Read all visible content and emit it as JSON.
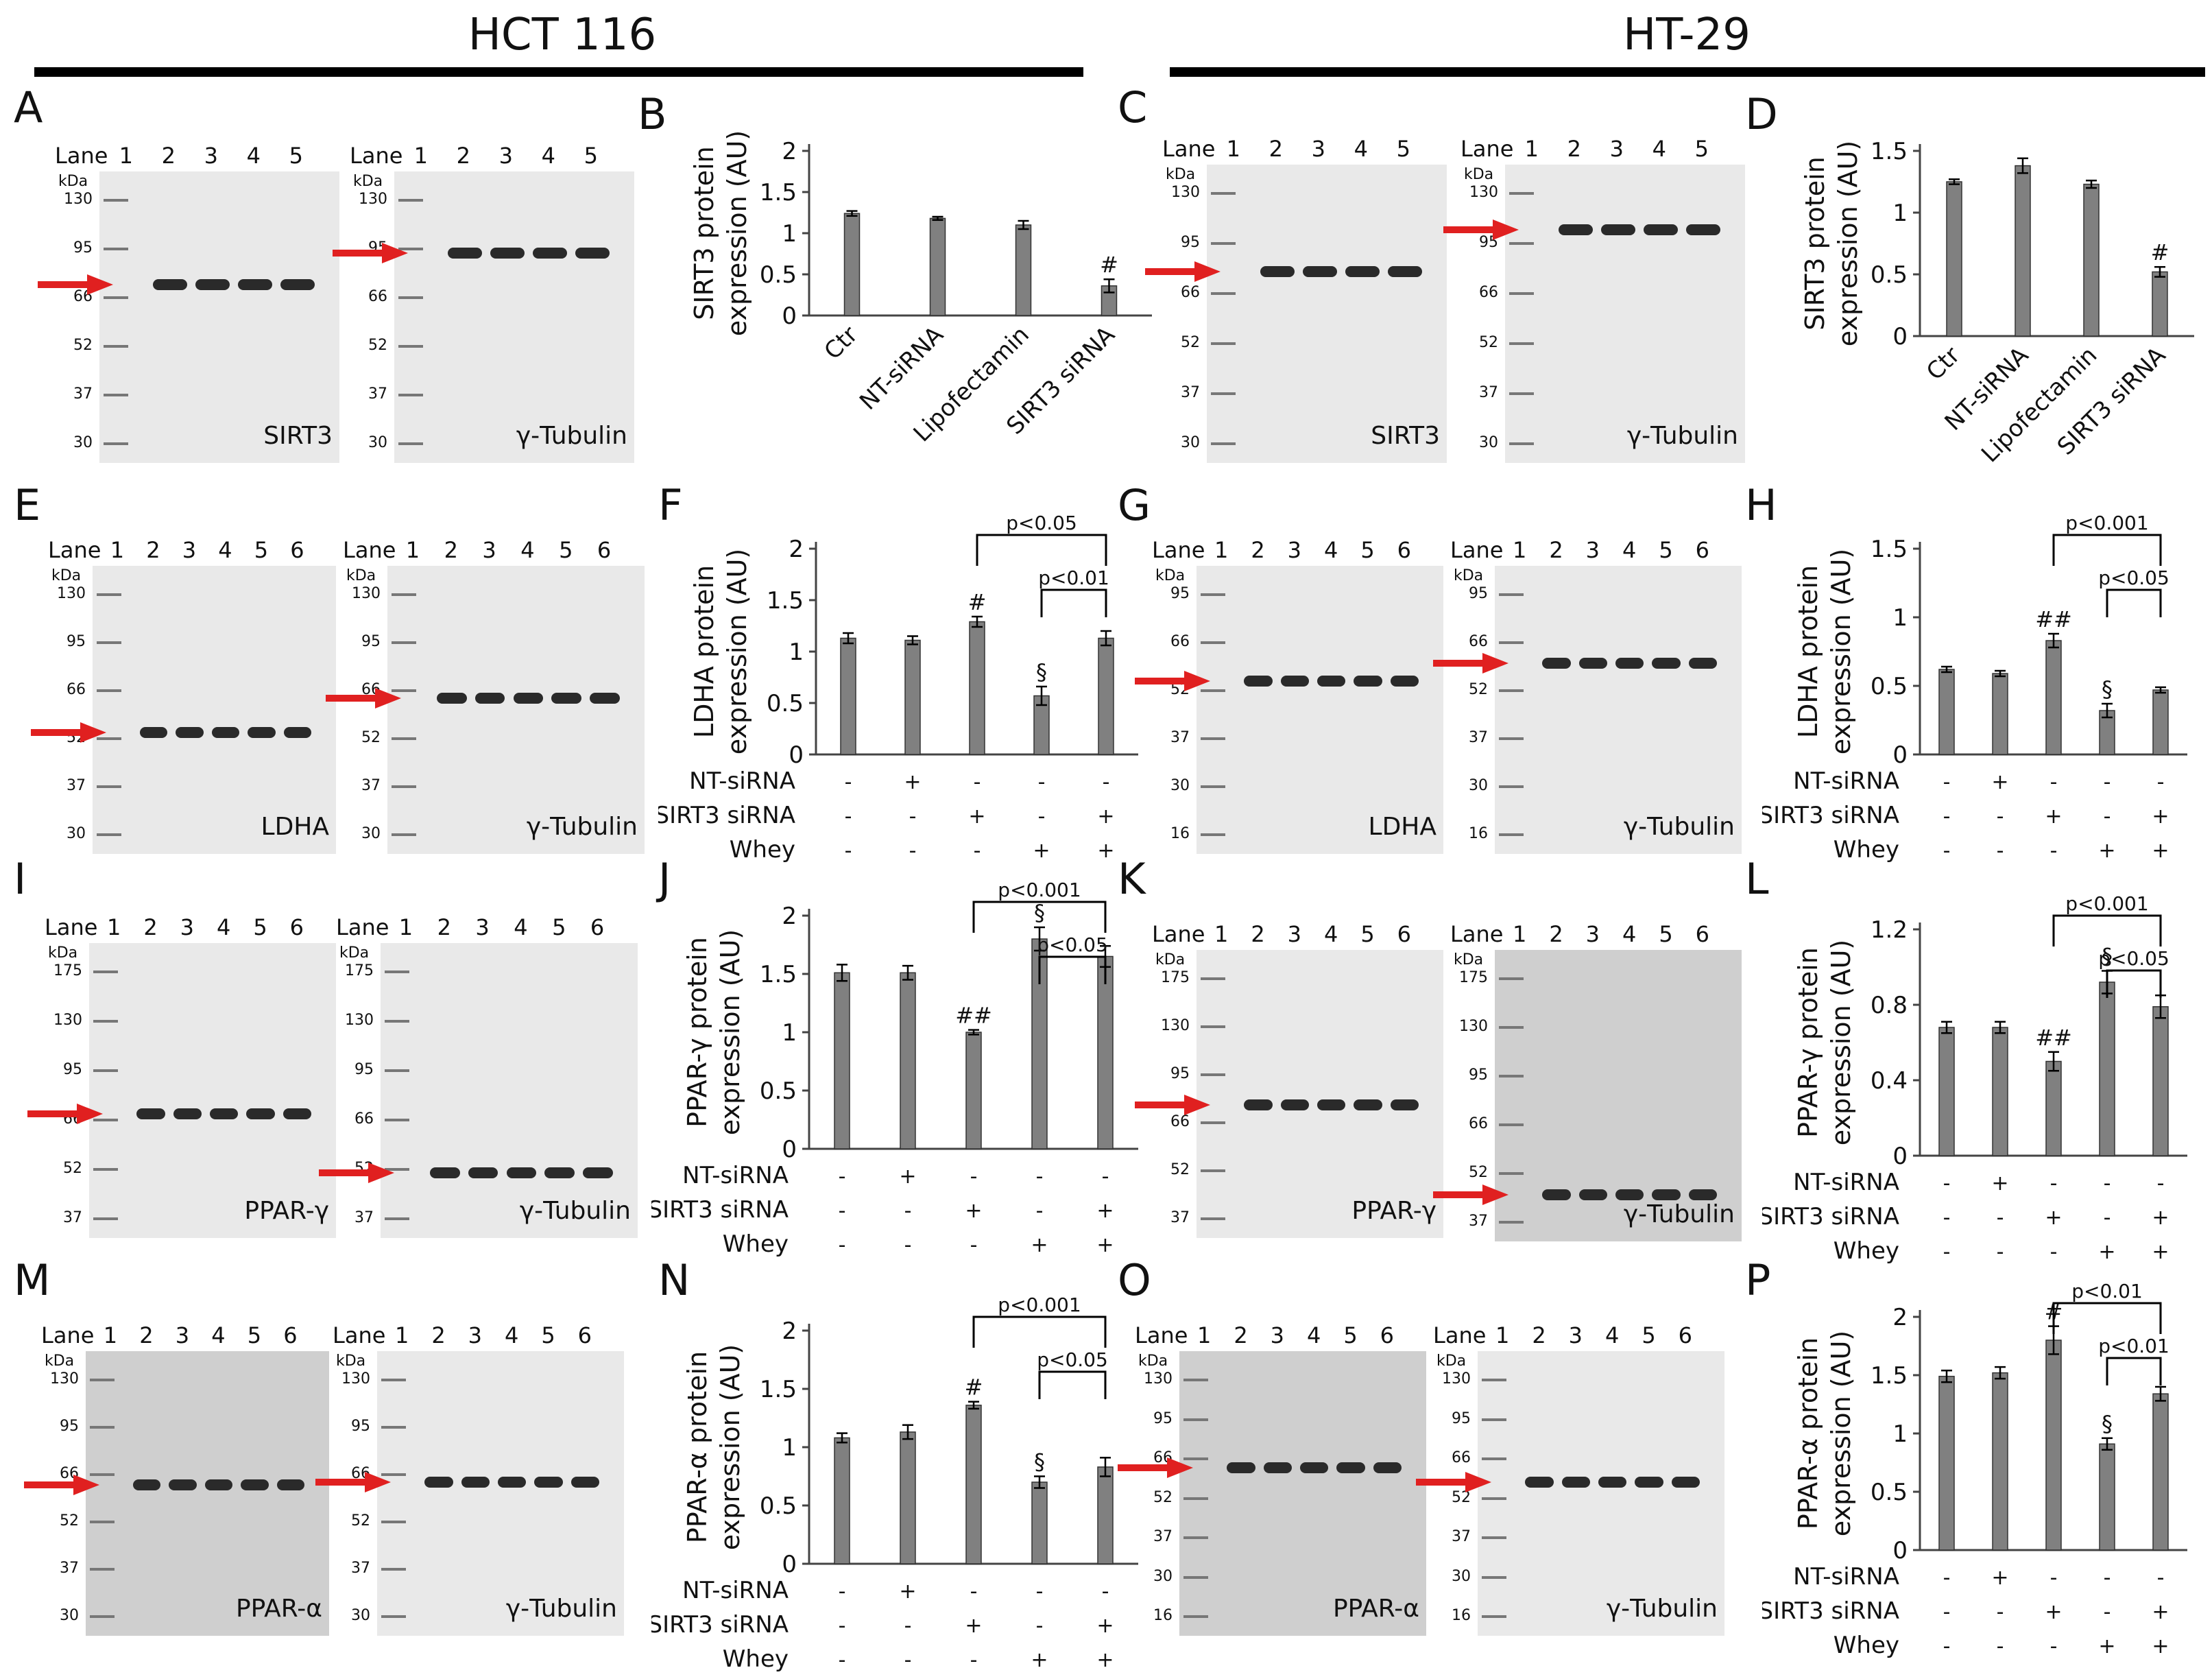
{
  "headers": {
    "left": "HCT 116",
    "right": "HT-29"
  },
  "panels": [
    "A",
    "B",
    "C",
    "D",
    "E",
    "F",
    "G",
    "H",
    "I",
    "J",
    "K",
    "L",
    "M",
    "N",
    "O",
    "P"
  ],
  "lane_word": "Lane",
  "kda": "kDa",
  "blots": [
    {
      "id": "A1",
      "lanes": [
        "1",
        "2",
        "3",
        "4",
        "5"
      ],
      "markers": [
        "130",
        "95",
        "66",
        "52",
        "37",
        "30"
      ],
      "protein": "SIRT3"
    },
    {
      "id": "A2",
      "lanes": [
        "1",
        "2",
        "3",
        "4",
        "5"
      ],
      "markers": [
        "130",
        "95",
        "66",
        "52",
        "37",
        "30"
      ],
      "protein": "γ-Tubulin"
    },
    {
      "id": "C1",
      "lanes": [
        "1",
        "2",
        "3",
        "4",
        "5"
      ],
      "markers": [
        "130",
        "95",
        "66",
        "52",
        "37",
        "30"
      ],
      "protein": "SIRT3"
    },
    {
      "id": "C2",
      "lanes": [
        "1",
        "2",
        "3",
        "4",
        "5"
      ],
      "markers": [
        "130",
        "95",
        "66",
        "52",
        "37",
        "30"
      ],
      "protein": "γ-Tubulin"
    },
    {
      "id": "E1",
      "lanes": [
        "1",
        "2",
        "3",
        "4",
        "5",
        "6"
      ],
      "markers": [
        "130",
        "95",
        "66",
        "52",
        "37",
        "30"
      ],
      "protein": "LDHA"
    },
    {
      "id": "E2",
      "lanes": [
        "1",
        "2",
        "3",
        "4",
        "5",
        "6"
      ],
      "markers": [
        "130",
        "95",
        "66",
        "52",
        "37",
        "30"
      ],
      "protein": "γ-Tubulin"
    },
    {
      "id": "G1",
      "lanes": [
        "1",
        "2",
        "3",
        "4",
        "5",
        "6"
      ],
      "markers": [
        "95",
        "66",
        "52",
        "37",
        "30",
        "16"
      ],
      "protein": "LDHA"
    },
    {
      "id": "G2",
      "lanes": [
        "1",
        "2",
        "3",
        "4",
        "5",
        "6"
      ],
      "markers": [
        "95",
        "66",
        "52",
        "37",
        "30",
        "16"
      ],
      "protein": "γ-Tubulin"
    },
    {
      "id": "I1",
      "lanes": [
        "1",
        "2",
        "3",
        "4",
        "5",
        "6"
      ],
      "markers": [
        "175",
        "130",
        "95",
        "66",
        "52",
        "37"
      ],
      "protein": "PPAR-γ"
    },
    {
      "id": "I2",
      "lanes": [
        "1",
        "2",
        "3",
        "4",
        "5",
        "6"
      ],
      "markers": [
        "175",
        "130",
        "95",
        "66",
        "52",
        "37"
      ],
      "protein": "γ-Tubulin"
    },
    {
      "id": "K1",
      "lanes": [
        "1",
        "2",
        "3",
        "4",
        "5",
        "6"
      ],
      "markers": [
        "175",
        "130",
        "95",
        "66",
        "52",
        "37"
      ],
      "protein": "PPAR-γ"
    },
    {
      "id": "K2",
      "lanes": [
        "1",
        "2",
        "3",
        "4",
        "5",
        "6"
      ],
      "markers": [
        "175",
        "130",
        "95",
        "66",
        "52",
        "37"
      ],
      "protein": "γ-Tubulin"
    },
    {
      "id": "M1",
      "lanes": [
        "1",
        "2",
        "3",
        "4",
        "5",
        "6"
      ],
      "markers": [
        "130",
        "95",
        "66",
        "52",
        "37",
        "30"
      ],
      "protein": "PPAR-α"
    },
    {
      "id": "M2",
      "lanes": [
        "1",
        "2",
        "3",
        "4",
        "5",
        "6"
      ],
      "markers": [
        "130",
        "95",
        "66",
        "52",
        "37",
        "30"
      ],
      "protein": "γ-Tubulin"
    },
    {
      "id": "O1",
      "lanes": [
        "1",
        "2",
        "3",
        "4",
        "5",
        "6"
      ],
      "markers": [
        "130",
        "95",
        "66",
        "52",
        "37",
        "30",
        "16"
      ],
      "protein": "PPAR-α"
    },
    {
      "id": "O2",
      "lanes": [
        "1",
        "2",
        "3",
        "4",
        "5",
        "6"
      ],
      "markers": [
        "130",
        "95",
        "66",
        "52",
        "37",
        "30",
        "16"
      ],
      "protein": "γ-Tubulin"
    }
  ],
  "treatment": {
    "rows": [
      "NT-siRNA",
      "SIRT3 siRNA",
      "Whey"
    ],
    "signs": [
      [
        "-",
        "+",
        "-",
        "-",
        "-"
      ],
      [
        "-",
        "-",
        "+",
        "-",
        "+"
      ],
      [
        "-",
        "-",
        "-",
        "+",
        "+"
      ]
    ]
  },
  "chart_data": [
    {
      "panel": "B",
      "type": "bar",
      "categories": [
        "Ctr",
        "NT-siRNA",
        "Lipofectamin",
        "SIRT3 siRNA"
      ],
      "values": [
        1.24,
        1.18,
        1.1,
        0.36
      ],
      "errors": [
        0.03,
        0.02,
        0.05,
        0.08
      ],
      "marks": [
        "",
        "",
        "",
        "#"
      ],
      "ylabel": "SIRT3 protein expression (AU)",
      "ylim": [
        0,
        2
      ],
      "yticks": [
        "0",
        "0.5",
        "1",
        "1.5",
        "2"
      ]
    },
    {
      "panel": "D",
      "type": "bar",
      "categories": [
        "Ctr",
        "NT-siRNA",
        "Lipofectamin",
        "SIRT3 siRNA"
      ],
      "values": [
        1.25,
        1.38,
        1.23,
        0.52
      ],
      "errors": [
        0.02,
        0.06,
        0.03,
        0.04
      ],
      "marks": [
        "",
        "",
        "",
        "#"
      ],
      "ylabel": "SIRT3 protein expression (AU)",
      "ylim": [
        0,
        1.5
      ],
      "yticks": [
        "0",
        "0.5",
        "1",
        "1.5"
      ]
    },
    {
      "panel": "F",
      "type": "bar",
      "values": [
        1.13,
        1.11,
        1.29,
        0.57,
        1.13
      ],
      "errors": [
        0.05,
        0.04,
        0.05,
        0.09,
        0.07
      ],
      "marks": [
        "",
        "",
        "#",
        "§",
        ""
      ],
      "ylabel": "LDHA protein expression (AU)",
      "ylim": [
        0,
        2
      ],
      "yticks": [
        "0",
        "0.5",
        "1",
        "1.5",
        "2"
      ],
      "brackets": [
        {
          "from": 2,
          "to": 4,
          "label": "p<0.05"
        },
        {
          "from": 3,
          "to": 4,
          "label": "p<0.01"
        }
      ]
    },
    {
      "panel": "H",
      "type": "bar",
      "values": [
        0.62,
        0.59,
        0.83,
        0.32,
        0.47
      ],
      "errors": [
        0.02,
        0.02,
        0.05,
        0.05,
        0.02
      ],
      "marks": [
        "",
        "",
        "##",
        "§",
        ""
      ],
      "ylabel": "LDHA protein expression (AU)",
      "ylim": [
        0,
        1.5
      ],
      "yticks": [
        "0",
        "0.5",
        "1",
        "1.5"
      ],
      "brackets": [
        {
          "from": 2,
          "to": 4,
          "label": "p<0.001"
        },
        {
          "from": 3,
          "to": 4,
          "label": "p<0.05"
        }
      ]
    },
    {
      "panel": "J",
      "type": "bar",
      "values": [
        1.51,
        1.51,
        1.0,
        1.8,
        1.65
      ],
      "errors": [
        0.07,
        0.06,
        0.02,
        0.1,
        0.09
      ],
      "marks": [
        "",
        "",
        "##",
        "§",
        ""
      ],
      "ylabel": "PPAR-γ protein expression (AU)",
      "ylim": [
        0,
        2
      ],
      "yticks": [
        "0",
        "0.5",
        "1",
        "1.5",
        "2"
      ],
      "brackets": [
        {
          "from": 2,
          "to": 4,
          "label": "p<0.001"
        },
        {
          "from": 3,
          "to": 4,
          "label": "p<0.05"
        }
      ]
    },
    {
      "panel": "L",
      "type": "bar",
      "values": [
        0.68,
        0.68,
        0.5,
        0.92,
        0.79
      ],
      "errors": [
        0.03,
        0.03,
        0.05,
        0.06,
        0.06
      ],
      "marks": [
        "",
        "",
        "##",
        "§",
        ""
      ],
      "ylabel": "PPAR-γ protein expression (AU)",
      "ylim": [
        0,
        1.2
      ],
      "yticks": [
        "0",
        "0.4",
        "0.8",
        "1.2"
      ],
      "brackets": [
        {
          "from": 2,
          "to": 4,
          "label": "p<0.001"
        },
        {
          "from": 3,
          "to": 4,
          "label": "p<0.05"
        }
      ]
    },
    {
      "panel": "N",
      "type": "bar",
      "values": [
        1.08,
        1.13,
        1.36,
        0.7,
        0.83
      ],
      "errors": [
        0.04,
        0.06,
        0.03,
        0.05,
        0.08
      ],
      "marks": [
        "",
        "",
        "#",
        "§",
        ""
      ],
      "ylabel": "PPAR-α protein expression (AU)",
      "ylim": [
        0,
        2
      ],
      "yticks": [
        "0",
        "0.5",
        "1",
        "1.5",
        "2"
      ],
      "brackets": [
        {
          "from": 2,
          "to": 4,
          "label": "p<0.001"
        },
        {
          "from": 3,
          "to": 4,
          "label": "p<0.05"
        }
      ]
    },
    {
      "panel": "P",
      "type": "bar",
      "values": [
        1.49,
        1.52,
        1.8,
        0.91,
        1.34
      ],
      "errors": [
        0.05,
        0.05,
        0.12,
        0.05,
        0.06
      ],
      "marks": [
        "",
        "",
        "#",
        "§",
        ""
      ],
      "ylabel": "PPAR-α protein expression (AU)",
      "ylim": [
        0,
        2
      ],
      "yticks": [
        "0",
        "0.5",
        "1",
        "1.5",
        "2"
      ],
      "brackets": [
        {
          "from": 2,
          "to": 4,
          "label": "p<0.01"
        },
        {
          "from": 3,
          "to": 4,
          "label": "p<0.01"
        }
      ]
    }
  ]
}
